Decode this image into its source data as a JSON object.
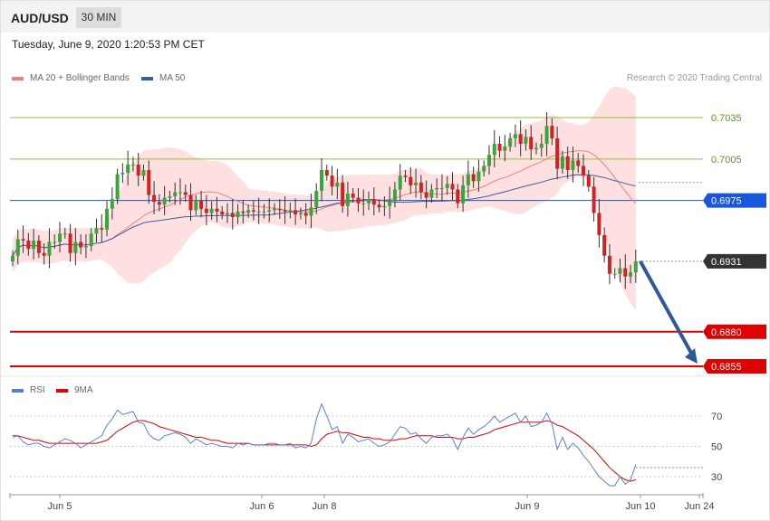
{
  "header": {
    "symbol": "AUD/USD",
    "timeframe": "30 MIN",
    "datetime": "Tuesday, June 9, 2020 1:20:53 PM CET"
  },
  "legend": {
    "ma20_label": "MA 20 + Bollinger Bands",
    "ma20_color": "#f08080",
    "ma50_label": "MA 50",
    "ma50_color": "#3b5fa0",
    "copyright": "Research © 2020 Trading Central"
  },
  "rsi_legend": {
    "rsi_label": "RSI",
    "rsi_color": "#5b7fd6",
    "ma9_label": "9MA",
    "ma9_color": "#e00000"
  },
  "chart_data": [
    {
      "type": "candlestick",
      "x_tick_labels": [
        "Jun 5",
        "Jun 6",
        "Jun 8",
        "Jun 9",
        "Jun 10",
        "Jun 24"
      ],
      "y_range": [
        0.6843,
        0.7075
      ],
      "close_values": [
        0.6935,
        0.6947,
        0.6946,
        0.694,
        0.6946,
        0.6937,
        0.6935,
        0.6945,
        0.6945,
        0.6951,
        0.6951,
        0.6937,
        0.6945,
        0.6941,
        0.6942,
        0.6951,
        0.6955,
        0.6954,
        0.6969,
        0.6976,
        0.6994,
        0.6995,
        0.7001,
        0.7001,
        0.6993,
        0.6997,
        0.6979,
        0.6974,
        0.6972,
        0.6977,
        0.6978,
        0.6981,
        0.6981,
        0.6979,
        0.6968,
        0.6975,
        0.6969,
        0.6966,
        0.6969,
        0.6967,
        0.6965,
        0.6966,
        0.6963,
        0.6967,
        0.6966,
        0.6968,
        0.6967,
        0.6967,
        0.6967,
        0.6968,
        0.6969,
        0.6968,
        0.6967,
        0.6968,
        0.6965,
        0.6966,
        0.6964,
        0.697,
        0.6982,
        0.6997,
        0.6993,
        0.6985,
        0.6988,
        0.6971,
        0.698,
        0.6977,
        0.6973,
        0.6973,
        0.6976,
        0.6972,
        0.697,
        0.6971,
        0.6975,
        0.6983,
        0.6993,
        0.6992,
        0.6986,
        0.6988,
        0.6981,
        0.6977,
        0.6983,
        0.6984,
        0.6984,
        0.6987,
        0.6983,
        0.6973,
        0.6986,
        0.6994,
        0.6989,
        0.6996,
        0.7,
        0.7008,
        0.7016,
        0.7011,
        0.7014,
        0.702,
        0.7023,
        0.7016,
        0.7021,
        0.7012,
        0.7013,
        0.7016,
        0.7029,
        0.702,
        0.6998,
        0.7007,
        0.6997,
        0.7004,
        0.7,
        0.6993,
        0.6985,
        0.6966,
        0.695,
        0.6935,
        0.6922,
        0.6922,
        0.6926,
        0.692,
        0.6923,
        0.6931
      ],
      "levels": [
        {
          "label": "0.7035",
          "value": 0.7035,
          "kind": "resistance",
          "color": "#8fbf40"
        },
        {
          "label": "0.7005",
          "value": 0.7005,
          "kind": "resistance",
          "color": "#8fbf40"
        },
        {
          "label": "0.6975",
          "value": 0.6975,
          "kind": "pivot",
          "color": "#1a56db"
        },
        {
          "label": "0.6931",
          "value": 0.6931,
          "kind": "last",
          "color": "#333333"
        },
        {
          "label": "0.6880",
          "value": 0.688,
          "kind": "support",
          "color": "#e00000"
        },
        {
          "label": "0.6855",
          "value": 0.6855,
          "kind": "support",
          "color": "#e00000"
        }
      ],
      "forecast": {
        "direction": "down",
        "from": 0.6931,
        "to": 0.6855,
        "color": "#2e5a9a"
      },
      "series": [
        {
          "name": "MA 20 + Bollinger Bands"
        },
        {
          "name": "MA 50"
        }
      ]
    },
    {
      "type": "line",
      "y_ticks": [
        70,
        50,
        30
      ],
      "y_range": [
        15,
        85
      ],
      "series": [
        {
          "name": "RSI",
          "values": [
            56,
            57,
            53,
            51,
            52,
            52,
            50,
            49,
            51,
            53,
            55,
            54,
            52,
            49,
            51,
            53,
            55,
            57,
            64,
            68,
            74,
            71,
            72,
            73,
            66,
            65,
            58,
            55,
            54,
            57,
            58,
            59,
            58,
            56,
            52,
            55,
            53,
            51,
            52,
            51,
            50,
            50,
            49,
            52,
            51,
            52,
            51,
            51,
            51,
            52,
            52,
            51,
            51,
            52,
            49,
            50,
            49,
            52,
            68,
            78,
            70,
            61,
            63,
            52,
            58,
            56,
            53,
            54,
            55,
            52,
            50,
            51,
            53,
            58,
            63,
            62,
            58,
            59,
            55,
            52,
            56,
            57,
            57,
            58,
            55,
            48,
            56,
            62,
            58,
            61,
            63,
            66,
            70,
            66,
            68,
            70,
            72,
            66,
            70,
            63,
            64,
            66,
            72,
            65,
            48,
            56,
            48,
            52,
            49,
            44,
            40,
            35,
            30,
            27,
            24,
            24,
            30,
            25,
            28,
            38
          ]
        },
        {
          "name": "9MA",
          "values": [
            57,
            57,
            56,
            55,
            54,
            54,
            53,
            52,
            52,
            52,
            52,
            52,
            52,
            52,
            52,
            52,
            52,
            53,
            54,
            57,
            60,
            62,
            64,
            66,
            67,
            67,
            66,
            65,
            63,
            62,
            61,
            60,
            59,
            58,
            57,
            56,
            56,
            55,
            54,
            54,
            53,
            52,
            52,
            52,
            52,
            52,
            51,
            51,
            51,
            51,
            51,
            51,
            51,
            51,
            51,
            51,
            51,
            50,
            51,
            55,
            58,
            59,
            60,
            59,
            59,
            58,
            57,
            56,
            56,
            55,
            55,
            54,
            54,
            54,
            55,
            55,
            56,
            57,
            57,
            57,
            57,
            56,
            56,
            56,
            56,
            55,
            55,
            56,
            56,
            57,
            58,
            59,
            61,
            62,
            63,
            64,
            65,
            66,
            66,
            66,
            66,
            66,
            67,
            66,
            64,
            63,
            61,
            59,
            57,
            54,
            51,
            48,
            44,
            40,
            36,
            33,
            30,
            28,
            27,
            28
          ]
        }
      ]
    }
  ]
}
